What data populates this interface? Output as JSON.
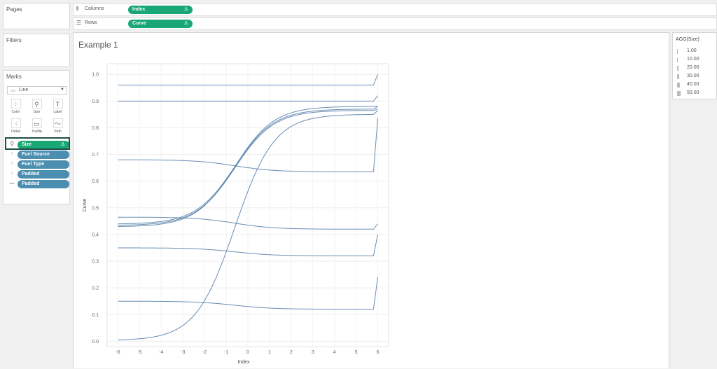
{
  "side": {
    "pages": "Pages",
    "filters": "Filters",
    "marks": "Marks"
  },
  "marks": {
    "type": "Line",
    "buttons": [
      {
        "label": "Color",
        "icon": "color-icon"
      },
      {
        "label": "Size",
        "icon": "size-icon"
      },
      {
        "label": "Label",
        "icon": "label-icon"
      },
      {
        "label": "Detail",
        "icon": "detail-icon"
      },
      {
        "label": "Tooltip",
        "icon": "tooltip-icon"
      },
      {
        "label": "Path",
        "icon": "path-icon"
      }
    ],
    "pills": [
      {
        "label": "Size",
        "icon": "size-icon",
        "color": "#1aa776",
        "delta": "Δ"
      },
      {
        "label": "Fuel Source",
        "icon": "detail-icon",
        "color": "#4b8eb0"
      },
      {
        "label": "Fuel Type",
        "icon": "detail-icon",
        "color": "#4b8eb0"
      },
      {
        "label": "Padded",
        "icon": "detail-icon",
        "color": "#4b8eb0"
      },
      {
        "label": "Padded",
        "icon": "path-icon",
        "color": "#4b8eb0"
      }
    ]
  },
  "shelves": {
    "columns": {
      "label": "Columns",
      "pill": "Index",
      "delta": "Δ"
    },
    "rows": {
      "label": "Rows",
      "pill": "Curve",
      "delta": "Δ"
    }
  },
  "legend": {
    "title": "AGG(Size)",
    "items": [
      "1.00",
      "10.00",
      "20.00",
      "30.00",
      "40.00",
      "50.00"
    ]
  },
  "chart_data": {
    "type": "line",
    "title": "Example 1",
    "xlabel": "Index",
    "ylabel": "Curve",
    "xlim": [
      -6.5,
      6.5
    ],
    "ylim": [
      -0.02,
      1.04
    ],
    "x_ticks": [
      -6,
      -5,
      -4,
      -3,
      -2,
      -1,
      0,
      1,
      2,
      3,
      4,
      5,
      6
    ],
    "y_ticks": [
      0.0,
      0.1,
      0.2,
      0.3,
      0.4,
      0.5,
      0.6,
      0.7,
      0.8,
      0.9,
      1.0
    ],
    "y_tick_labels": [
      "0.0",
      "0.1",
      "0.2",
      "0.3",
      "0.4",
      "0.5",
      "0.6",
      "0.7",
      "0.8",
      "0.9",
      "1.0"
    ],
    "grid": true,
    "line_color": "#4e79a7",
    "series": [
      {
        "start": 0.96,
        "end": 0.96,
        "tip": 1.0
      },
      {
        "start": 0.9,
        "end": 0.9,
        "tip": 0.92
      },
      {
        "start": 0.68,
        "end": 0.635,
        "tip": 0.835
      },
      {
        "start": 0.465,
        "end": 0.42,
        "tip": 0.44
      },
      {
        "start": 0.35,
        "end": 0.32,
        "tip": 0.4
      },
      {
        "start": 0.15,
        "end": 0.12,
        "tip": 0.24
      },
      {
        "start": 0.44,
        "end": 0.87,
        "tip": 0.88
      },
      {
        "start": 0.435,
        "end": 0.865,
        "tip": 0.87
      },
      {
        "start": 0.43,
        "end": 0.88,
        "tip": 0.88
      },
      {
        "start": 0.005,
        "end": 0.85,
        "tip": 0.865
      }
    ]
  }
}
